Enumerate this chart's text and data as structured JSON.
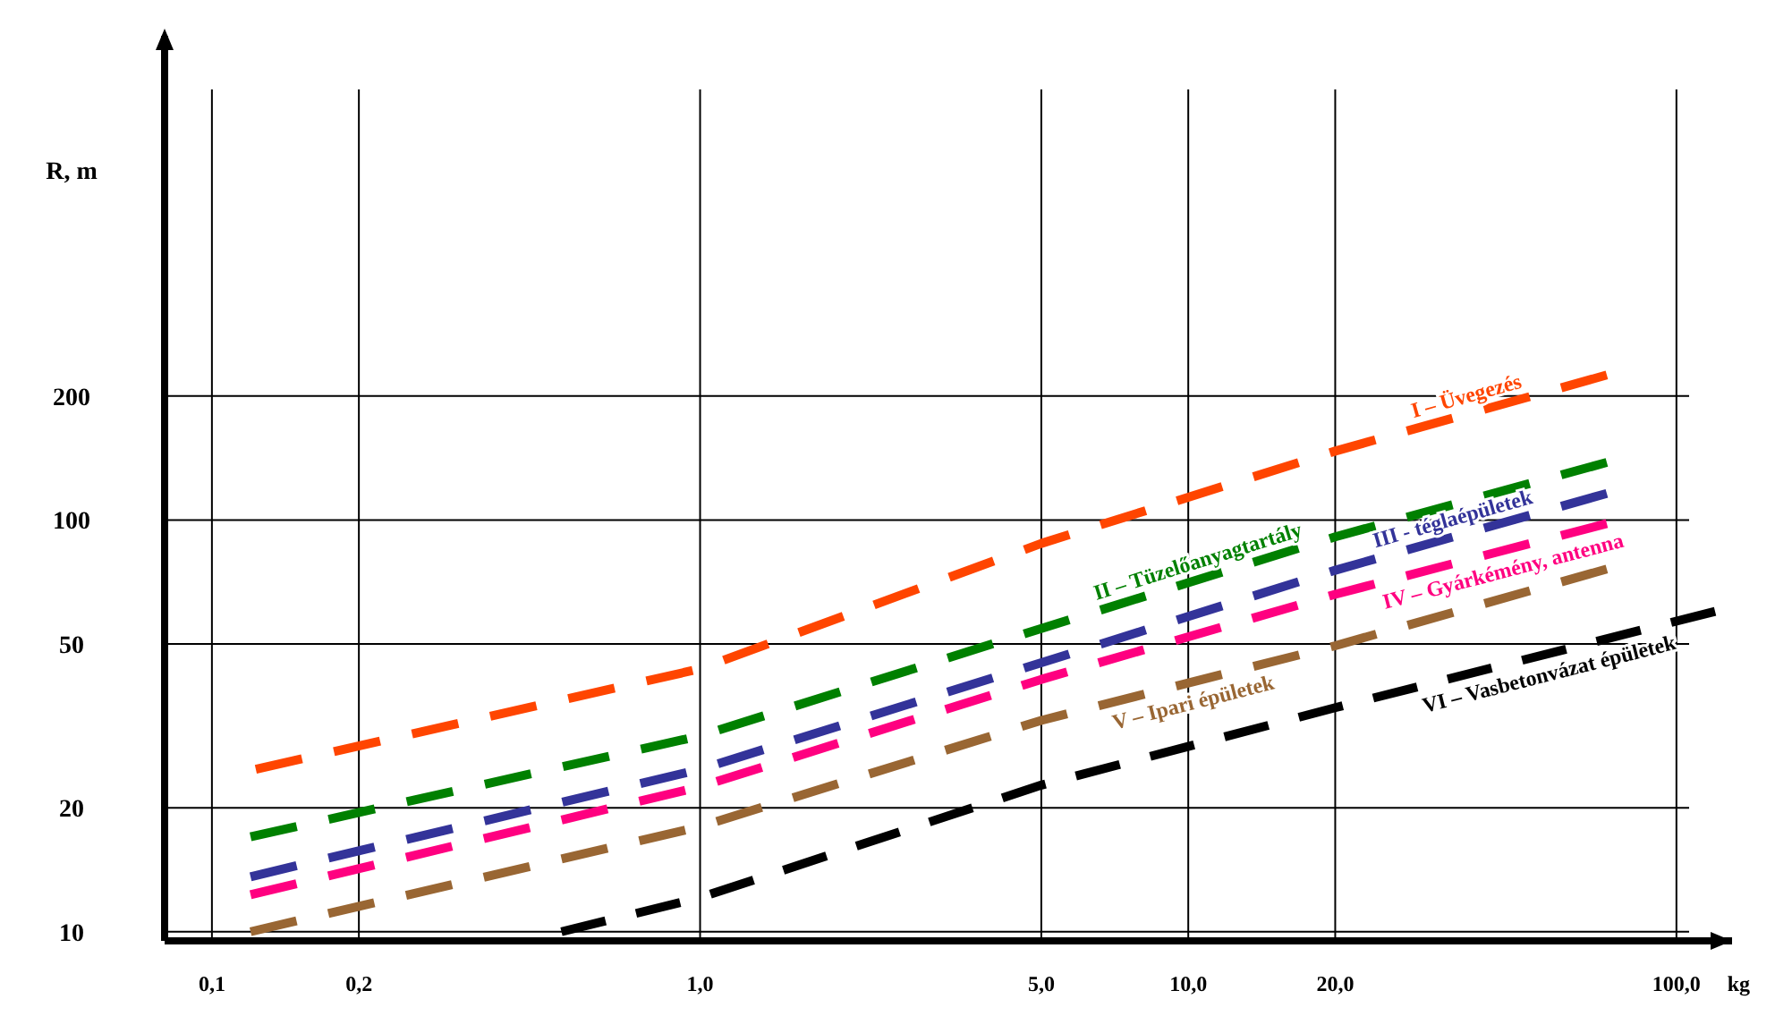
{
  "chart_data": {
    "type": "line",
    "xlabel": "kg",
    "ylabel": "R, m",
    "log": "xy",
    "grid": true,
    "line_style": "dashed",
    "xlim": [
      0.08,
      130
    ],
    "ylim": [
      9.5,
      1500
    ],
    "xticks": [
      {
        "value": 0.1,
        "label": "0,1"
      },
      {
        "value": 0.2,
        "label": "0,2"
      },
      {
        "value": 1,
        "label": "1,0"
      },
      {
        "value": 5,
        "label": "5,0"
      },
      {
        "value": 10,
        "label": "10,0"
      },
      {
        "value": 20,
        "label": "20,0"
      },
      {
        "value": 100,
        "label": "100,0"
      }
    ],
    "yticks": [
      10,
      20,
      50,
      100,
      200
    ],
    "series": [
      {
        "name": "I – Üvegezés",
        "color": "#ff4500",
        "x": [
          0.123,
          1,
          5,
          20,
          72
        ],
        "values": [
          24.8,
          43.5,
          87.7,
          147,
          225
        ]
      },
      {
        "name": "II – Tüzelőanyagtartály",
        "color": "#008000",
        "x": [
          0.12,
          1,
          5,
          20,
          72
        ],
        "values": [
          17,
          29.9,
          54.5,
          91,
          138
        ]
      },
      {
        "name": "III - téglaépületek",
        "color": "#333399",
        "x": [
          0.12,
          1,
          5,
          20,
          72
        ],
        "values": [
          13.6,
          24.8,
          45,
          75.5,
          116
        ]
      },
      {
        "name": "IV – Gyárkémény, antenna",
        "color": "#ff0080",
        "x": [
          0.12,
          1,
          5,
          20,
          72
        ],
        "values": [
          12.3,
          22.5,
          41,
          66,
          98
        ]
      },
      {
        "name": "V – Ipari épületek",
        "color": "#996633",
        "x": [
          0.12,
          1,
          5,
          20,
          72
        ],
        "values": [
          10,
          18,
          32.6,
          49.5,
          76
        ]
      },
      {
        "name": "VI – Vasbetonvázat épületek",
        "color": "#000000",
        "x": [
          0.52,
          1,
          5,
          20,
          120
        ],
        "values": [
          10,
          12.1,
          22.7,
          35,
          60
        ]
      }
    ]
  }
}
